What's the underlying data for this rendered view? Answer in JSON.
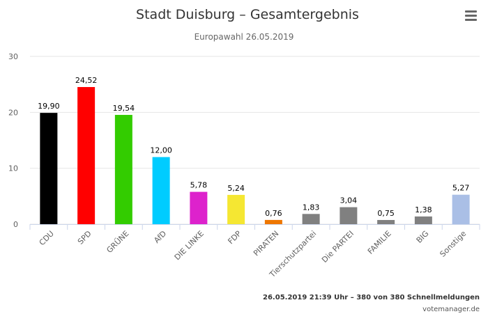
{
  "chart_data": {
    "type": "bar",
    "title": "Stadt Duisburg – Gesamtergebnis",
    "subtitle": "Europawahl 26.05.2019",
    "categories": [
      "CDU",
      "SPD",
      "GRÜNE",
      "AfD",
      "DIE LINKE",
      "FDP",
      "PIRATEN",
      "Tierschutzpartei",
      "Die PARTEI",
      "FAMILIE",
      "BIG",
      "Sonstige"
    ],
    "values": [
      19.9,
      24.52,
      19.54,
      12.0,
      5.78,
      5.24,
      0.76,
      1.83,
      3.04,
      0.75,
      1.38,
      5.27
    ],
    "data_labels": [
      "19,90",
      "24,52",
      "19,54",
      "12,00",
      "5,78",
      "5,24",
      "0,76",
      "1,83",
      "3,04",
      "0,75",
      "1,38",
      "5,27"
    ],
    "colors": [
      "#000000",
      "#ff0000",
      "#33cc00",
      "#00ccff",
      "#dd22cc",
      "#f5e732",
      "#ee7700",
      "#808080",
      "#808080",
      "#808080",
      "#808080",
      "#aabfe6"
    ],
    "ylim": [
      0,
      30
    ],
    "yticks": [
      "0",
      "10",
      "20",
      "30"
    ],
    "grid": true,
    "xlabel": "",
    "ylabel": ""
  },
  "credits": {
    "status": "26.05.2019 21:39 Uhr – 380 von 380 Schnellmeldungen",
    "source": "votemanager.de"
  },
  "menu": {
    "icon": "hamburger-menu-icon"
  }
}
